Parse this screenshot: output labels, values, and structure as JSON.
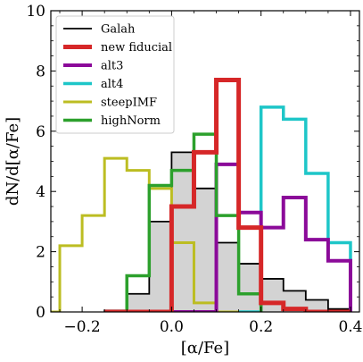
{
  "chart_data": {
    "type": "histogram",
    "xlabel": "[α/Fe]",
    "ylabel": "dN/d[α/Fe]",
    "xlim": [
      -0.27,
      0.42
    ],
    "ylim": [
      0,
      10
    ],
    "x_ticks": [
      -0.2,
      0.0,
      0.2,
      0.4
    ],
    "x_tick_labels": [
      "−0.2",
      "0.0",
      "0.2",
      "0.4"
    ],
    "y_ticks": [
      0,
      2,
      4,
      6,
      8,
      10
    ],
    "y_tick_labels": [
      "0",
      "2",
      "4",
      "6",
      "8",
      "10"
    ],
    "legend_position": "top-left",
    "grid": false,
    "series": [
      {
        "name": "Galah",
        "color": "#000000",
        "filled": true,
        "fill_color": "#d3d3d3",
        "edges": [
          -0.15,
          -0.1,
          -0.05,
          0.0,
          0.05,
          0.1,
          0.15,
          0.2,
          0.25,
          0.3,
          0.35,
          0.4
        ],
        "values": [
          0.05,
          0.6,
          3.0,
          5.3,
          4.1,
          2.3,
          1.6,
          1.1,
          0.7,
          0.4,
          0.1
        ]
      },
      {
        "name": "new fiducial",
        "color": "#d62728",
        "edges": [
          -0.15,
          -0.1,
          -0.05,
          0.0,
          0.05,
          0.1,
          0.15,
          0.2,
          0.25,
          0.3,
          0.35,
          0.4
        ],
        "values": [
          0.0,
          0.0,
          0.0,
          3.5,
          5.3,
          7.7,
          2.8,
          0.3,
          0.1,
          0.0,
          0.0
        ]
      },
      {
        "name": "alt3",
        "color": "#8b0a99",
        "edges": [
          -0.15,
          -0.1,
          -0.05,
          0.0,
          0.05,
          0.1,
          0.15,
          0.2,
          0.25,
          0.3,
          0.35,
          0.4
        ],
        "values": [
          0.0,
          0.0,
          0.0,
          0.0,
          0.0,
          4.9,
          3.3,
          2.8,
          3.8,
          2.4,
          1.7
        ]
      },
      {
        "name": "alt4",
        "color": "#1ec6c8",
        "edges": [
          0.15,
          0.2,
          0.25,
          0.3,
          0.35,
          0.4
        ],
        "values": [
          0.0,
          6.8,
          6.4,
          4.6,
          2.3
        ]
      },
      {
        "name": "steepIMF",
        "color": "#bcbd22",
        "edges": [
          -0.27,
          -0.25,
          -0.2,
          -0.15,
          -0.1,
          -0.05,
          0.0,
          0.05,
          0.1,
          0.15
        ],
        "values": [
          0.0,
          2.2,
          3.2,
          5.1,
          4.7,
          4.1,
          2.3,
          0.3,
          0.0
        ]
      },
      {
        "name": "highNorm",
        "color": "#2ca02c",
        "edges": [
          -0.15,
          -0.1,
          -0.05,
          0.0,
          0.05,
          0.1,
          0.15,
          0.2
        ],
        "values": [
          0.0,
          1.2,
          4.2,
          4.7,
          5.9,
          3.2,
          0.6
        ]
      }
    ]
  }
}
